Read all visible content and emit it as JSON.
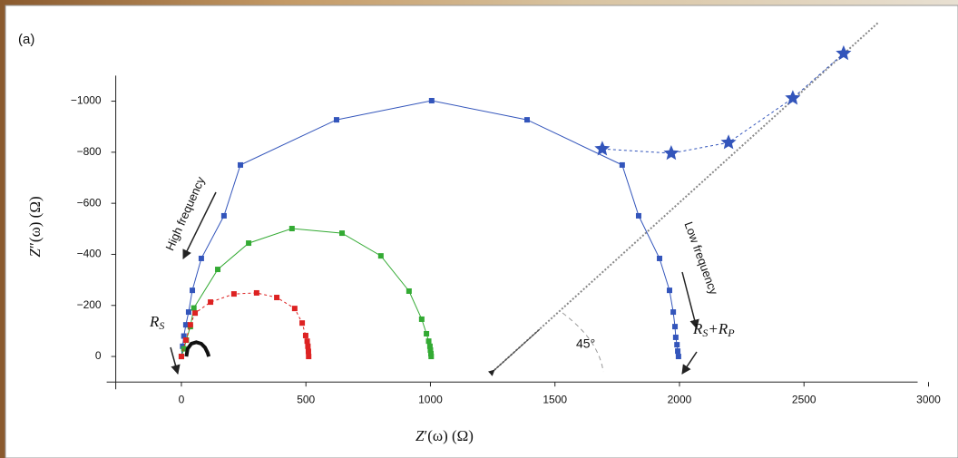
{
  "chart_data": {
    "type": "line",
    "panel_label": "(a)",
    "y_label": [
      "Z",
      "″(ω) (Ω)"
    ],
    "x_label": [
      "Z",
      "′(ω) (Ω)"
    ],
    "xlim": [
      -300,
      3000
    ],
    "xticks": [
      0,
      500,
      1000,
      1500,
      2000,
      2500,
      3000
    ],
    "ylim": [
      100,
      -1100
    ],
    "yticks": [
      0,
      {
        "value": -200,
        "label": "−200"
      },
      {
        "value": -400,
        "label": "−400"
      },
      {
        "value": -600,
        "label": "−600"
      },
      {
        "value": -800,
        "label": "−800"
      },
      {
        "value": -1000,
        "label": "−1000"
      }
    ],
    "annotations": {
      "high_frequency": "High frequency",
      "low_frequency": "Low frequency",
      "angle": "45°",
      "rs": [
        "R",
        "S"
      ],
      "rs_rp": [
        "R",
        "S",
        "+R",
        "P"
      ]
    },
    "series": [
      {
        "color": "#3355bb",
        "marker": "square",
        "dashed": false,
        "x": [
          0,
          5,
          10,
          18,
          29,
          44,
          80,
          171,
          237,
          623,
          1005,
          1388,
          1770,
          1836,
          1920,
          1960,
          1975,
          1982,
          1985,
          1990,
          1993,
          1996
        ],
        "values": [
          0,
          -40,
          -80,
          -124,
          -174,
          -259,
          -384,
          -551,
          -750,
          -927,
          -1002,
          -927,
          -750,
          -551,
          -384,
          -259,
          -174,
          -117,
          -75,
          -46,
          -21,
          0
        ]
      },
      {
        "color": "#3355bb",
        "marker": "star",
        "dashed": true,
        "x": [
          1690,
          1967,
          2197,
          2455,
          2659
        ],
        "values": [
          -813,
          -796,
          -838,
          -1012,
          -1187
        ]
      },
      {
        "color": "#33aa33",
        "marker": "square",
        "dashed": false,
        "x": [
          0,
          10,
          20,
          36,
          50,
          146,
          270,
          444,
          645,
          801,
          914,
          965,
          984,
          993,
          998,
          1000,
          1002,
          1003
        ],
        "values": [
          0,
          -30,
          -64,
          -117,
          -190,
          -341,
          -444,
          -501,
          -483,
          -394,
          -256,
          -146,
          -89,
          -60,
          -40,
          -25,
          -11,
          0
        ]
      },
      {
        "color": "#dd2222",
        "marker": "square",
        "dashed": true,
        "x": [
          0,
          18,
          36,
          55,
          117,
          211,
          302,
          383,
          455,
          485,
          499,
          505,
          508,
          510,
          511
        ],
        "values": [
          0,
          -64,
          -124,
          -170,
          -213,
          -245,
          -249,
          -231,
          -188,
          -131,
          -82,
          -60,
          -40,
          -20,
          0
        ]
      },
      {
        "color": "#111111",
        "marker": "none",
        "dashed": false,
        "x": [
          20,
          25,
          40,
          60,
          80,
          95,
          105,
          110
        ],
        "values": [
          0,
          -30,
          -50,
          -56,
          -50,
          -35,
          -15,
          0
        ]
      }
    ]
  }
}
